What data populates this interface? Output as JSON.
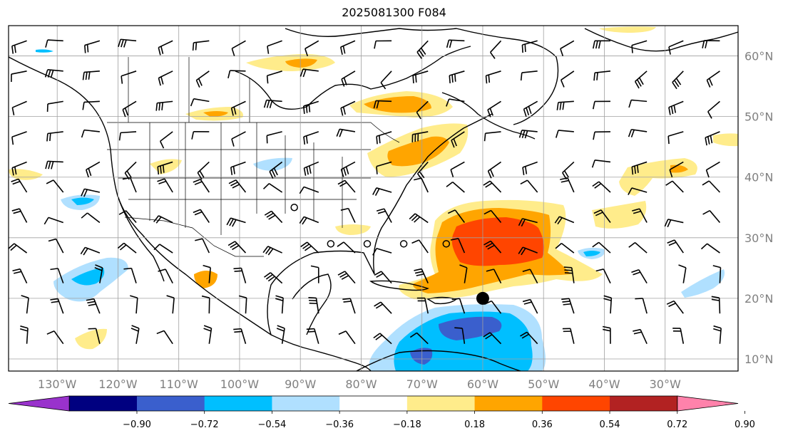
{
  "title": "2025081300 F084",
  "map": {
    "lon_range": [
      -138,
      -18
    ],
    "lat_range": [
      8,
      65
    ],
    "lon_ticks": [
      {
        "value": -130,
        "label": "130°W"
      },
      {
        "value": -120,
        "label": "120°W"
      },
      {
        "value": -110,
        "label": "110°W"
      },
      {
        "value": -100,
        "label": "100°W"
      },
      {
        "value": -90,
        "label": "90°W"
      },
      {
        "value": -80,
        "label": "80°W"
      },
      {
        "value": -70,
        "label": "70°W"
      },
      {
        "value": -60,
        "label": "60°W"
      },
      {
        "value": -50,
        "label": "50°W"
      },
      {
        "value": -40,
        "label": "40°W"
      },
      {
        "value": -30,
        "label": "30°W"
      }
    ],
    "lat_ticks": [
      {
        "value": 60,
        "label": "60°N"
      },
      {
        "value": 50,
        "label": "50°N"
      },
      {
        "value": 40,
        "label": "40°N"
      },
      {
        "value": 30,
        "label": "30°N"
      },
      {
        "value": 20,
        "label": "20°N"
      },
      {
        "value": 10,
        "label": "10°N"
      }
    ],
    "grid": true,
    "marker_large": {
      "lon": -60,
      "lat": 20
    },
    "markers_open": [
      {
        "lon": -91,
        "lat": 35
      },
      {
        "lon": -85,
        "lat": 29
      },
      {
        "lon": -79,
        "lat": 29
      },
      {
        "lon": -73,
        "lat": 29
      },
      {
        "lon": -66,
        "lat": 29
      }
    ]
  },
  "colorbar": {
    "colors": [
      "#9932cc",
      "#000080",
      "#3a5fcd",
      "#00bfff",
      "#b0e0ff",
      "#ffffff",
      "#ffec8b",
      "#ffa500",
      "#ff4500",
      "#b22222",
      "#ff82ab"
    ],
    "under_color": "#9932cc",
    "over_color": "#ff82ab",
    "ticks": [
      "−0.90",
      "−0.72",
      "−0.54",
      "−0.36",
      "−0.18",
      "0.18",
      "0.36",
      "0.54",
      "0.72",
      "0.90"
    ]
  }
}
